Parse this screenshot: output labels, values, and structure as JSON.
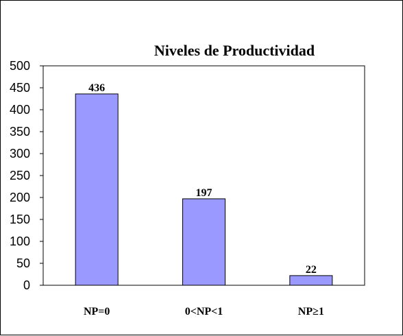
{
  "chart_data": {
    "type": "bar",
    "title": "Niveles de Productividad",
    "xlabel": "",
    "ylabel": "",
    "categories": [
      "NP=0",
      "0<NP<1",
      "NP≥1"
    ],
    "values": [
      436,
      197,
      22
    ],
    "data_labels": [
      "436",
      "197",
      "22"
    ],
    "ylim": [
      0,
      500
    ],
    "yticks": [
      0,
      50,
      100,
      150,
      200,
      250,
      300,
      350,
      400,
      450,
      500
    ],
    "ytick_labels": [
      "0",
      "50",
      "100",
      "150",
      "200",
      "250",
      "300",
      "350",
      "400",
      "450",
      "500"
    ],
    "grid": false,
    "legend": "none",
    "colors": {
      "bar_fill": "#9999ff",
      "bar_stroke": "#000000",
      "axis": "#000000",
      "background": "#ffffff"
    }
  }
}
